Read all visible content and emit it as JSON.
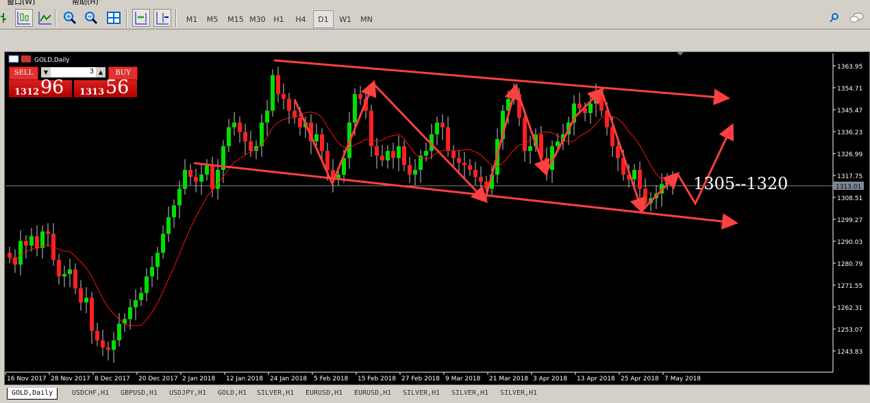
{
  "menu": {
    "items": [
      "窗口(W)",
      "帮助(H)"
    ]
  },
  "toolbar": {
    "timeframes": [
      "M1",
      "M5",
      "M15",
      "M30",
      "H1",
      "H4",
      "D1",
      "W1",
      "MN"
    ],
    "active_timeframe": "D1"
  },
  "chart": {
    "title": "GOLD,Daily",
    "one_click": {
      "sell_label": "SELL",
      "buy_label": "BUY",
      "volume": "3",
      "sell_price_main": "1312",
      "sell_price_pips": "96",
      "buy_price_main": "1313",
      "buy_price_pips": "56"
    },
    "current_price": "1313.01",
    "annotation": "1305--1320",
    "colors": {
      "bull": "#00e000",
      "bear": "#ff2020",
      "ma": "#ff1010",
      "drawing": "#ff4040"
    }
  },
  "chart_data": {
    "type": "candlestick",
    "price_axis": [
      "1363.95",
      "1354.71",
      "1345.47",
      "1336.23",
      "1326.99",
      "1317.75",
      "1308.51",
      "1299.27",
      "1290.03",
      "1280.79",
      "1271.55",
      "1262.31",
      "1253.07",
      "1243.83"
    ],
    "date_axis": [
      "16 Nov 2017",
      "28 Nov 2017",
      "8 Dec 2017",
      "20 Dec 2017",
      "2 Jan 2018",
      "12 Jan 2018",
      "24 Jan 2018",
      "5 Feb 2018",
      "15 Feb 2018",
      "27 Feb 2018",
      "9 Mar 2018",
      "21 Mar 2018",
      "3 Apr 2018",
      "13 Apr 2018",
      "25 Apr 2018",
      "7 May 2018"
    ],
    "ylim": [
      1237,
      1368
    ],
    "closes": [
      1283,
      1280,
      1290,
      1288,
      1292,
      1287,
      1294,
      1293,
      1282,
      1275,
      1276,
      1278,
      1270,
      1264,
      1266,
      1252,
      1248,
      1245,
      1244,
      1248,
      1255,
      1257,
      1262,
      1265,
      1268,
      1275,
      1279,
      1285,
      1293,
      1300,
      1305,
      1312,
      1320,
      1317,
      1315,
      1318,
      1322,
      1312,
      1320,
      1330,
      1338,
      1340,
      1336,
      1332,
      1328,
      1330,
      1340,
      1345,
      1360,
      1352,
      1350,
      1345,
      1342,
      1338,
      1340,
      1332,
      1335,
      1328,
      1320,
      1316,
      1318,
      1325,
      1340,
      1352,
      1350,
      1345,
      1330,
      1326,
      1324,
      1328,
      1325,
      1330,
      1322,
      1318,
      1320,
      1326,
      1328,
      1335,
      1340,
      1338,
      1328,
      1325,
      1323,
      1322,
      1320,
      1317,
      1315,
      1312,
      1318,
      1333,
      1345,
      1350,
      1352,
      1342,
      1328,
      1330,
      1335,
      1325,
      1320,
      1330,
      1332,
      1335,
      1340,
      1348,
      1346,
      1344,
      1348,
      1352,
      1345,
      1338,
      1330,
      1325,
      1318,
      1316,
      1320,
      1312,
      1306,
      1308,
      1310,
      1314,
      1316,
      1313
    ]
  },
  "tabs": [
    "GOLD,Daily",
    "USDCHF,H1",
    "GBPUSD,H1",
    "USDJPY,H1",
    "GOLD,H1",
    "SILVER,H1",
    "EURUSD,H1",
    "EURUSD,H1",
    "SILVER,H1",
    "SILVER,H1",
    "SILVER,H1"
  ]
}
